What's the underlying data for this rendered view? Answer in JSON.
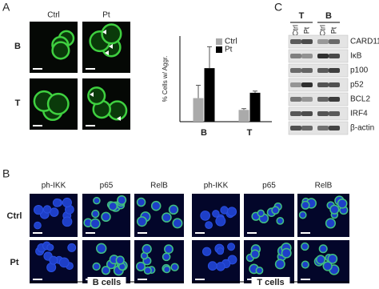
{
  "panel_a": {
    "label": "A",
    "columns": [
      "Ctrl",
      "Pt"
    ],
    "rows": [
      "B",
      "T"
    ]
  },
  "chart_data": {
    "type": "bar",
    "ylabel": "% Cells w/ Aggr.",
    "categories": [
      "B",
      "T"
    ],
    "series": [
      {
        "name": "Ctrl",
        "color": "#aaaaaa",
        "values": [
          11,
          5.5
        ],
        "errors": [
          6,
          0.6
        ]
      },
      {
        "name": "Pt",
        "color": "#000000",
        "values": [
          25,
          13.5
        ],
        "errors": [
          10,
          0.8
        ]
      }
    ],
    "ylim": [
      0,
      40
    ],
    "legend": "upper right"
  },
  "panel_c": {
    "label": "C",
    "groups": [
      {
        "name": "T",
        "lanes": [
          "Ctrl",
          "Pt"
        ]
      },
      {
        "name": "B",
        "lanes": [
          "Ctrl",
          "Pt"
        ]
      }
    ],
    "bands": [
      "CARD11",
      "IκB",
      "p100",
      "p52",
      "BCL2",
      "IRF4",
      "β-actin"
    ]
  },
  "panel_b": {
    "label": "B",
    "columns": [
      "ph-IKK",
      "p65",
      "RelB",
      "ph-IKK",
      "p65",
      "RelB"
    ],
    "rows": [
      "Ctrl",
      "Pt"
    ],
    "groups": [
      "B cells",
      "T cells"
    ]
  }
}
